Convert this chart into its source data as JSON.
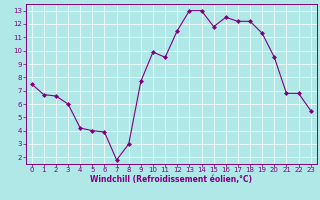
{
  "x": [
    0,
    1,
    2,
    3,
    4,
    5,
    6,
    7,
    8,
    9,
    10,
    11,
    12,
    13,
    14,
    15,
    16,
    17,
    18,
    19,
    20,
    21,
    22,
    23
  ],
  "y": [
    7.5,
    6.7,
    6.6,
    6.0,
    4.2,
    4.0,
    3.9,
    1.8,
    3.0,
    7.7,
    9.9,
    9.5,
    11.5,
    13.0,
    13.0,
    11.8,
    12.5,
    12.2,
    12.2,
    11.3,
    9.5,
    6.8,
    6.8,
    5.5
  ],
  "line_color": "#800080",
  "marker_color": "#800080",
  "bg_color": "#b0e8e8",
  "grid_color": "#ffffff",
  "xlabel": "Windchill (Refroidissement éolien,°C)",
  "xlabel_color": "#800080",
  "tick_color": "#800080",
  "spine_color": "#800080",
  "ylim": [
    1.5,
    13.5
  ],
  "xlim": [
    -0.5,
    23.5
  ],
  "yticks": [
    2,
    3,
    4,
    5,
    6,
    7,
    8,
    9,
    10,
    11,
    12,
    13
  ],
  "xticks": [
    0,
    1,
    2,
    3,
    4,
    5,
    6,
    7,
    8,
    9,
    10,
    11,
    12,
    13,
    14,
    15,
    16,
    17,
    18,
    19,
    20,
    21,
    22,
    23
  ],
  "tick_fontsize": 5.0,
  "xlabel_fontsize": 5.5,
  "marker_size": 2.0,
  "line_width": 0.8
}
